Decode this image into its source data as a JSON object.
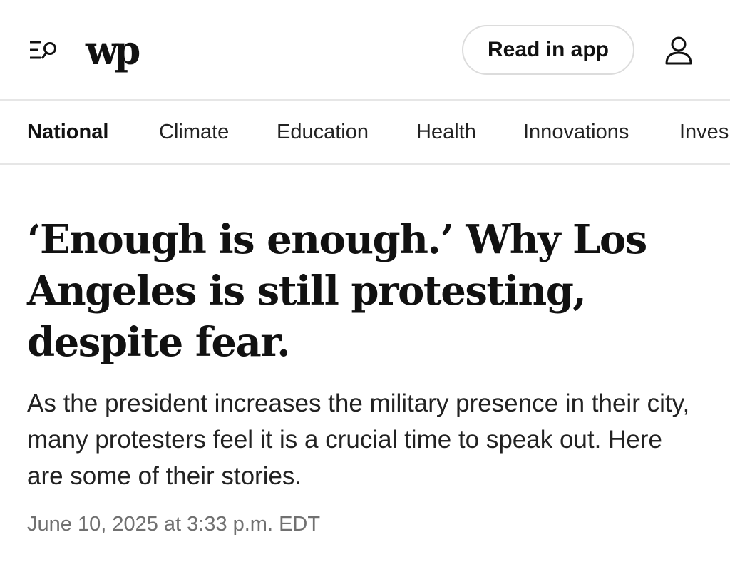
{
  "header": {
    "logo_text": "wp",
    "read_in_app_label": "Read in app",
    "icons": {
      "menu_search": "menu-search-icon",
      "account": "account-icon"
    }
  },
  "section_nav": {
    "items": [
      {
        "label": "National",
        "active": true
      },
      {
        "label": "Climate",
        "active": false
      },
      {
        "label": "Education",
        "active": false
      },
      {
        "label": "Health",
        "active": false
      },
      {
        "label": "Innovations",
        "active": false
      },
      {
        "label": "Inves",
        "active": false
      }
    ]
  },
  "article": {
    "headline": "‘Enough is enough.’ Why Los Angeles is still protesting, despite fear.",
    "dek": "As the president increases the military presence in their city, many protesters feel it is a crucial time to speak out. Here are some of their stories.",
    "timestamp": "June 10, 2025 at 3:33 p.m. EDT"
  },
  "colors": {
    "text": "#111111",
    "muted": "#707070",
    "divider": "#e6e6e6",
    "button_border": "#dcdcdc"
  }
}
